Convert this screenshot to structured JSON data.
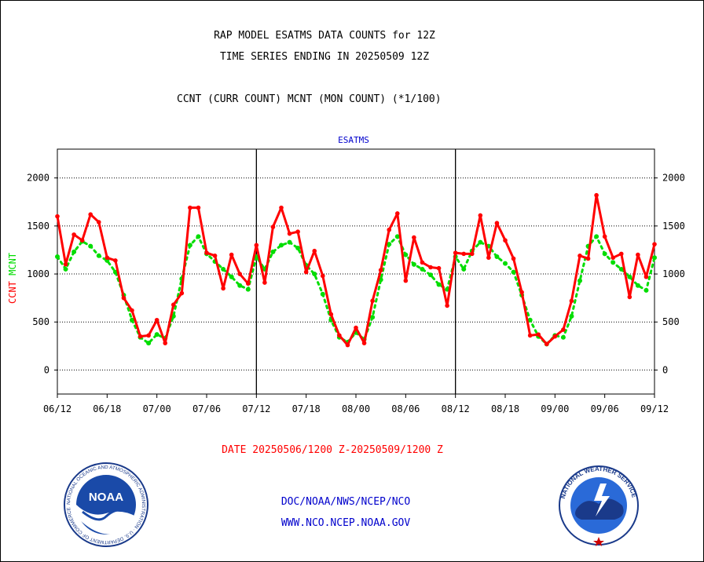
{
  "header": {
    "title_line1": "RAP MODEL ESATMS DATA COUNTS for 12Z",
    "title_line2": "TIME SERIES ENDING IN 20250509 12Z",
    "subtitle": "CCNT (CURR COUNT) MCNT (MON COUNT) (*1/100)"
  },
  "footer": {
    "date_range": "DATE 20250506/1200 Z-20250509/1200 Z",
    "line1": "DOC/NOAA/NWS/NCEP/NCO",
    "line2": "WWW.NCO.NCEP.NOAA.GOV"
  },
  "logos": {
    "noaa": {
      "icon": "noaa-logo-icon",
      "text": "NOAA",
      "ring_text": "NATIONAL OCEANIC AND ATMOSPHERIC ADMINISTRATION · U.S. DEPARTMENT OF COMMERCE"
    },
    "nws": {
      "icon": "nws-logo-icon",
      "ring_text": "NATIONAL WEATHER SERVICE"
    }
  },
  "colors": {
    "ccnt": "#ff0000",
    "mcnt": "#00dd00",
    "panel_label": "#0000cc",
    "footer": "#0000cc"
  },
  "chart_data": {
    "type": "line",
    "panel_label": "ESATMS",
    "ylabel_left": {
      "ccnt": "CCNT",
      "mcnt": "MCNT"
    },
    "ylim": [
      -250,
      2300
    ],
    "yticks": [
      0,
      500,
      1000,
      1500,
      2000
    ],
    "xticks": [
      "06/12",
      "06/18",
      "07/00",
      "07/06",
      "07/12",
      "07/18",
      "08/00",
      "08/06",
      "08/12",
      "08/18",
      "09/00",
      "09/06",
      "09/12"
    ],
    "x_hours_per_step": 1,
    "grid": true,
    "series": [
      {
        "name": "CCNT",
        "color": "#ff0000",
        "x": [
          0,
          1,
          2,
          3,
          4,
          5,
          6,
          7,
          8,
          9,
          10,
          11,
          12,
          13,
          14,
          15,
          16,
          17,
          18,
          19,
          20,
          21,
          22,
          23,
          24,
          25,
          26,
          27,
          28,
          29,
          30,
          31,
          32,
          33,
          34,
          35,
          36,
          37,
          38,
          39,
          40,
          41,
          42,
          43,
          44,
          45,
          46,
          47,
          48,
          49,
          50,
          51,
          52,
          53,
          54,
          55,
          56,
          57,
          58,
          59,
          60,
          61,
          62,
          63,
          64,
          65,
          66,
          67,
          68,
          69,
          70,
          71,
          72
        ],
        "values": [
          1600,
          1100,
          1410,
          1350,
          1620,
          1540,
          1170,
          1140,
          750,
          620,
          350,
          360,
          520,
          280,
          680,
          800,
          1690,
          1690,
          1220,
          1190,
          850,
          1200,
          1000,
          900,
          1300,
          910,
          1490,
          1690,
          1420,
          1440,
          1020,
          1240,
          980,
          580,
          360,
          260,
          440,
          280,
          720,
          1040,
          1460,
          1630,
          930,
          1380,
          1120,
          1070,
          1060,
          670,
          1220,
          1210,
          1210,
          1610,
          1170,
          1530,
          1350,
          1160,
          810,
          360,
          370,
          270,
          350,
          420,
          720,
          1190,
          1160,
          1820,
          1390,
          1170,
          1210,
          760,
          1200,
          970,
          1310
        ]
      },
      {
        "name": "MCNT",
        "color": "#00dd00",
        "x": [
          0,
          1,
          2,
          3,
          4,
          5,
          6,
          7,
          8,
          9,
          10,
          11,
          12,
          13,
          14,
          15,
          16,
          17,
          18,
          19,
          20,
          21,
          22,
          23,
          24,
          25,
          26,
          27,
          28,
          29,
          30,
          31,
          32,
          33,
          34,
          35,
          36,
          37,
          38,
          39,
          40,
          41,
          42,
          43,
          44,
          45,
          46,
          47,
          48,
          49,
          50,
          51,
          52,
          53,
          54,
          55,
          56,
          57,
          58,
          59,
          60,
          61,
          62,
          63,
          64,
          65,
          66,
          67,
          68,
          69,
          70,
          71,
          72
        ],
        "values": [
          1180,
          1050,
          1230,
          1340,
          1290,
          1190,
          1140,
          1020,
          780,
          520,
          340,
          280,
          370,
          330,
          560,
          950,
          1300,
          1390,
          1210,
          1130,
          1050,
          970,
          880,
          840,
          1180,
          1050,
          1230,
          1300,
          1330,
          1270,
          1090,
          1000,
          790,
          520,
          340,
          290,
          390,
          320,
          550,
          940,
          1310,
          1390,
          1200,
          1100,
          1050,
          990,
          890,
          840,
          1180,
          1050,
          1240,
          1330,
          1290,
          1180,
          1110,
          1020,
          780,
          520,
          350,
          270,
          360,
          340,
          560,
          930,
          1290,
          1390,
          1210,
          1120,
          1050,
          970,
          880,
          830,
          1170
        ]
      }
    ]
  }
}
